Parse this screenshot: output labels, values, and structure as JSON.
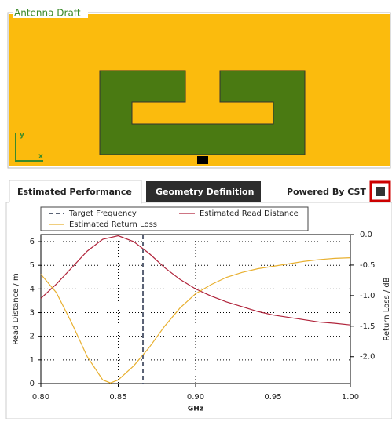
{
  "panel": {
    "title": "Antenna Draft",
    "axis_labels": [
      "y",
      "x"
    ]
  },
  "tabs": [
    "Estimated Performance",
    "Geometry Definition"
  ],
  "powered_by": "Powered By CST",
  "chart_data": {
    "type": "line",
    "xlabel": "GHz",
    "ylabel": "Read Distance / m",
    "y2label": "Return Loss / dB",
    "xlim": [
      0.8,
      1.0
    ],
    "xticks": [
      {
        "value": 0.8,
        "label": "0.80"
      },
      0.85,
      {
        "value": 0.9,
        "label": "0.90"
      },
      0.95,
      {
        "value": 1.0,
        "label": "1.00"
      }
    ],
    "ylim": [
      0,
      6.3
    ],
    "yticks": [
      0,
      1,
      2,
      3,
      4,
      5,
      6
    ],
    "y2lim": [
      -2.44,
      0.0
    ],
    "y2ticks": [
      {
        "value": 0.0,
        "label": "0.0"
      },
      -0.5,
      {
        "value": -1.0,
        "label": "-1.0"
      },
      -1.5,
      {
        "value": -2.0,
        "label": "-2.0"
      }
    ],
    "grid": true,
    "markers": [
      {
        "name": "Target Frequency",
        "x": 0.866,
        "color": "#5a6275"
      }
    ],
    "series": [
      {
        "name": "Estimated Read Distance",
        "color": "#b0233a",
        "x": [
          0.8,
          0.81,
          0.82,
          0.83,
          0.84,
          0.85,
          0.86,
          0.87,
          0.88,
          0.89,
          0.9,
          0.91,
          0.92,
          0.93,
          0.94,
          0.95,
          0.96,
          0.97,
          0.98,
          0.99,
          1.0
        ],
        "values": [
          3.6,
          4.2,
          4.9,
          5.6,
          6.1,
          6.25,
          6.0,
          5.5,
          4.9,
          4.4,
          4.0,
          3.7,
          3.45,
          3.25,
          3.05,
          2.9,
          2.8,
          2.7,
          2.6,
          2.55,
          2.48
        ]
      },
      {
        "name": "Estimated Return Loss",
        "color": "#e8b030",
        "axis": "y2",
        "x": [
          0.8,
          0.81,
          0.82,
          0.83,
          0.84,
          0.845,
          0.85,
          0.86,
          0.87,
          0.88,
          0.89,
          0.9,
          0.91,
          0.92,
          0.93,
          0.94,
          0.95,
          0.96,
          0.97,
          0.98,
          0.99,
          1.0
        ],
        "values": [
          -0.65,
          -0.95,
          -1.45,
          -2.0,
          -2.38,
          -2.43,
          -2.38,
          -2.15,
          -1.85,
          -1.5,
          -1.2,
          -0.97,
          -0.82,
          -0.7,
          -0.62,
          -0.56,
          -0.52,
          -0.48,
          -0.44,
          -0.41,
          -0.39,
          -0.38
        ]
      }
    ]
  }
}
